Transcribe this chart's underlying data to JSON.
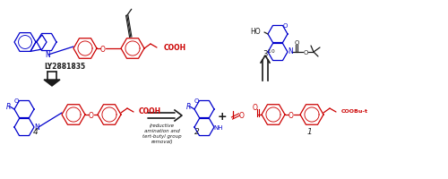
{
  "bg": "#ffffff",
  "blue": "#0000CC",
  "red": "#CC0000",
  "black": "#1a1a1a",
  "fig_w": 5.0,
  "fig_h": 2.01,
  "dpi": 100,
  "xlim": [
    0,
    500
  ],
  "ylim": [
    0,
    201
  ]
}
